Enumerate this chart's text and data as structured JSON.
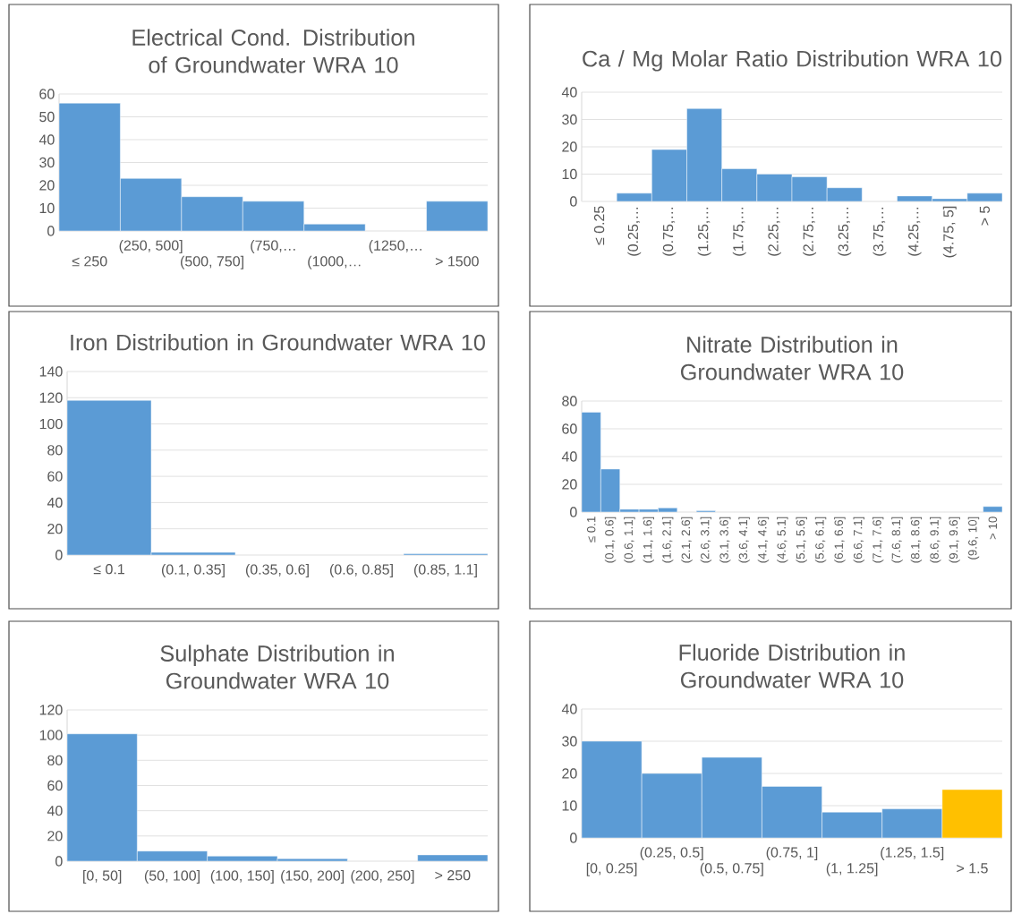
{
  "chart_data": [
    {
      "type": "bar",
      "title": "Electrical Cond. Distribution of Groundwater WRA 10",
      "categories": [
        "≤ 250",
        "(250, 500]",
        "(500, 750]",
        "(750,…",
        "(1000,…",
        "(1250,…",
        "> 1500"
      ],
      "values": [
        56,
        23,
        15,
        13,
        3,
        0,
        13
      ],
      "color": "#5b9bd5",
      "ylim": [
        0,
        60
      ],
      "yticks": [
        0,
        10,
        20,
        30,
        40,
        50,
        60
      ],
      "grid": "y"
    },
    {
      "type": "bar",
      "title": "Ca / Mg Molar Ratio Distribution WRA 10",
      "categories": [
        "≤ 0.25",
        "(0.25,…",
        "(0.75,…",
        "(1.25,…",
        "(1.75,…",
        "(2.25,…",
        "(2.75,…",
        "(3.25,…",
        "(3.75,…",
        "(4.25,…",
        "(4.75, 5]",
        "> 5"
      ],
      "values": [
        0,
        3,
        19,
        34,
        12,
        10,
        9,
        5,
        0,
        2,
        1,
        3
      ],
      "color": "#5b9bd5",
      "ylim": [
        0,
        40
      ],
      "yticks": [
        0,
        10,
        20,
        30,
        40
      ],
      "grid": "y"
    },
    {
      "type": "bar",
      "title": "Iron Distribution in Groundwater WRA 10",
      "categories": [
        "≤ 0.1",
        "(0.1, 0.35]",
        "(0.35, 0.6]",
        "(0.6, 0.85]",
        "(0.85, 1.1]"
      ],
      "values": [
        118,
        2,
        0,
        0,
        1
      ],
      "color": "#5b9bd5",
      "ylim": [
        0,
        140
      ],
      "yticks": [
        0,
        20,
        40,
        60,
        80,
        100,
        120,
        140
      ],
      "grid": "y"
    },
    {
      "type": "bar",
      "title": "Nitrate Distribution in Groundwater WRA 10",
      "categories": [
        "≤ 0.1",
        "(0.1, 0.6]",
        "(0.6, 1.1]",
        "(1.1, 1.6]",
        "(1.6, 2.1]",
        "(2.1, 2.6]",
        "(2.6, 3.1]",
        "(3.1, 3.6]",
        "(3.6, 4.1]",
        "(4.1, 4.6]",
        "(4.6, 5.1]",
        "(5.1, 5.6]",
        "(5.6, 6.1]",
        "(6.1, 6.6]",
        "(6.6, 7.1]",
        "(7.1, 7.6]",
        "(7.6, 8.1]",
        "(8.1, 8.6]",
        "(8.6, 9.1]",
        "(9.1, 9.6]",
        "(9.6, 10]",
        "> 10"
      ],
      "values": [
        72,
        31,
        2,
        2,
        3,
        0,
        1,
        0,
        0,
        0,
        0,
        0,
        0,
        0,
        0,
        0,
        0,
        0,
        0,
        0,
        0,
        4
      ],
      "color": "#5b9bd5",
      "ylim": [
        0,
        80
      ],
      "yticks": [
        0,
        20,
        40,
        60,
        80
      ],
      "grid": "y"
    },
    {
      "type": "bar",
      "title": "Sulphate Distribution in Groundwater WRA 10",
      "categories": [
        "[0, 50]",
        "(50, 100]",
        "(100, 150]",
        "(150, 200]",
        "(200, 250]",
        "> 250"
      ],
      "values": [
        101,
        8,
        4,
        2,
        0,
        5
      ],
      "color": "#5b9bd5",
      "ylim": [
        0,
        120
      ],
      "yticks": [
        0,
        20,
        40,
        60,
        80,
        100,
        120
      ],
      "grid": "y"
    },
    {
      "type": "bar",
      "title": "Fluoride Distribution in Groundwater WRA 10",
      "categories": [
        "[0, 0.25]",
        "(0.25, 0.5]",
        "(0.5, 0.75]",
        "(0.75, 1]",
        "(1, 1.25]",
        "(1.25, 1.5]",
        "> 1.5"
      ],
      "values": [
        30,
        20,
        25,
        16,
        8,
        9,
        15
      ],
      "colors": [
        "#5b9bd5",
        "#5b9bd5",
        "#5b9bd5",
        "#5b9bd5",
        "#5b9bd5",
        "#5b9bd5",
        "#ffc000"
      ],
      "ylim": [
        0,
        40
      ],
      "yticks": [
        0,
        10,
        20,
        30,
        40
      ],
      "grid": "y"
    }
  ]
}
